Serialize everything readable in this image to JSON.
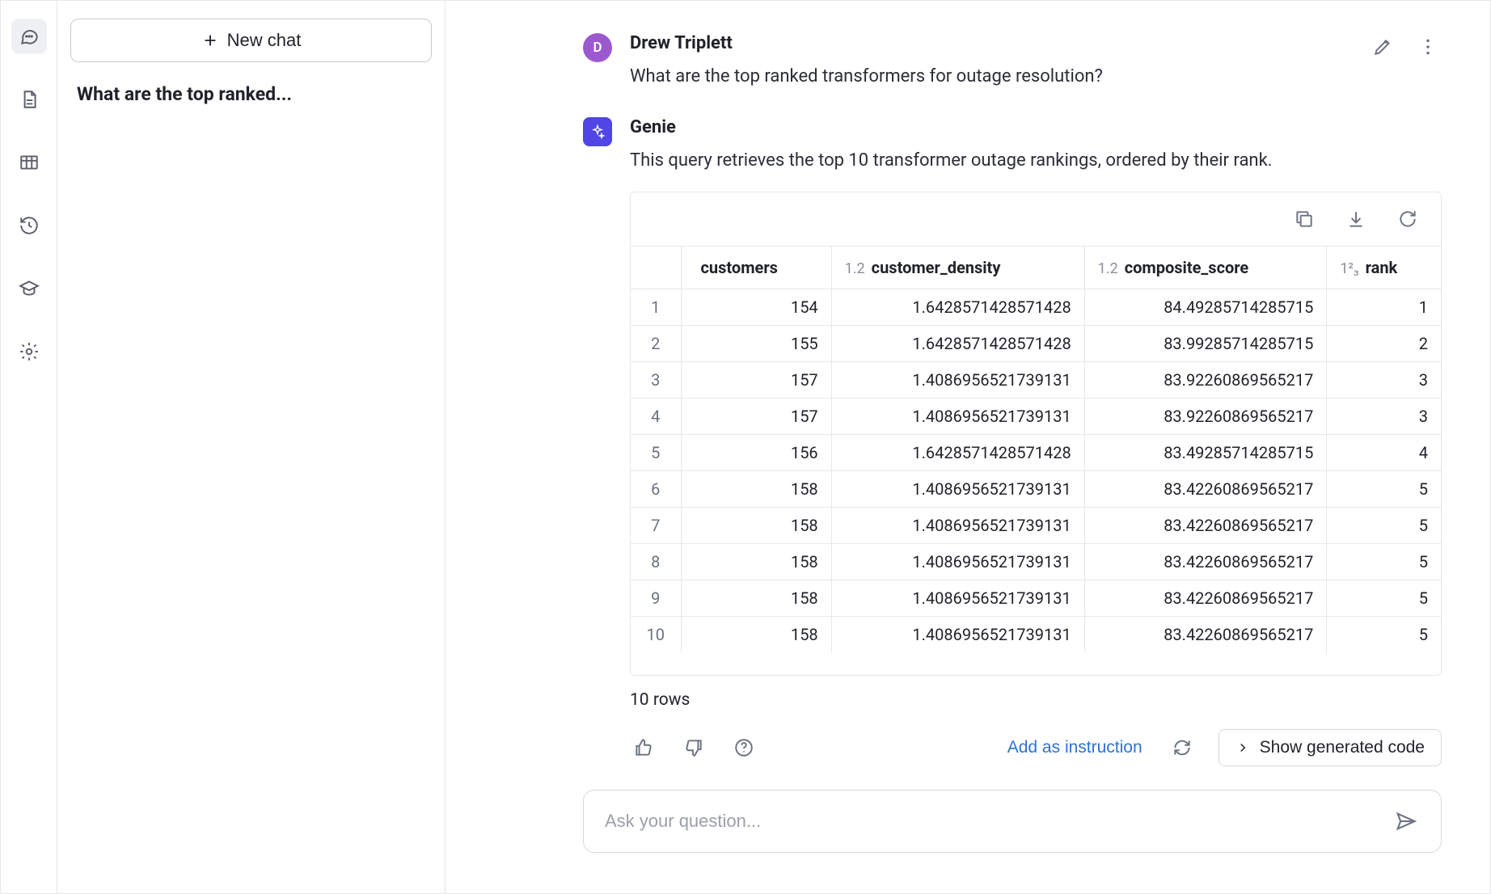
{
  "rail": {
    "active_index": 0
  },
  "chatlist": {
    "new_chat_label": "New chat",
    "items": [
      {
        "title": "What are the top ranked..."
      }
    ]
  },
  "conversation": {
    "user": {
      "initial": "D",
      "name": "Drew Triplett",
      "message": "What are the top ranked transformers for outage resolution?",
      "avatar_color": "#9b59d0"
    },
    "assistant": {
      "name": "Genie",
      "message": "This query retrieves the top 10 transformer outage rankings, ordered by their rank.",
      "avatar_color": "#4f46e5"
    }
  },
  "table": {
    "columns": [
      {
        "type_label": "",
        "name": "customers"
      },
      {
        "type_label": "1.2",
        "name": "customer_density"
      },
      {
        "type_label": "1.2",
        "name": "composite_score"
      },
      {
        "type_label": "1²₃",
        "name": "rank"
      }
    ],
    "rows": [
      [
        154,
        "1.6428571428571428",
        "84.49285714285715",
        1
      ],
      [
        155,
        "1.6428571428571428",
        "83.99285714285715",
        2
      ],
      [
        157,
        "1.4086956521739131",
        "83.92260869565217",
        3
      ],
      [
        157,
        "1.4086956521739131",
        "83.92260869565217",
        3
      ],
      [
        156,
        "1.6428571428571428",
        "83.49285714285715",
        4
      ],
      [
        158,
        "1.4086956521739131",
        "83.42260869565217",
        5
      ],
      [
        158,
        "1.4086956521739131",
        "83.42260869565217",
        5
      ],
      [
        158,
        "1.4086956521739131",
        "83.42260869565217",
        5
      ],
      [
        158,
        "1.4086956521739131",
        "83.42260869565217",
        5
      ],
      [
        158,
        "1.4086956521739131",
        "83.42260869565217",
        5
      ]
    ],
    "row_count_label": "10 rows"
  },
  "actions": {
    "add_instruction_label": "Add as instruction",
    "show_code_label": "Show generated code"
  },
  "composer": {
    "placeholder": "Ask your question..."
  },
  "colors": {
    "border": "#e5e7eb",
    "text": "#1f2228",
    "muted": "#6b7280",
    "link": "#2e72d2"
  }
}
